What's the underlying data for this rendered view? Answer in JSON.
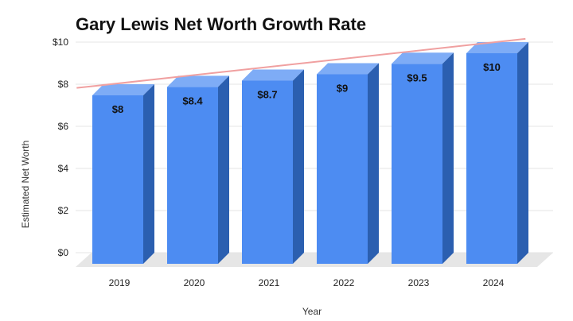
{
  "chart_data": {
    "type": "bar",
    "title": "Gary Lewis Net Worth Growth Rate",
    "xlabel": "Year",
    "ylabel": "Estimated Net Worth",
    "categories": [
      "2019",
      "2020",
      "2021",
      "2022",
      "2023",
      "2024"
    ],
    "values": [
      8,
      8.4,
      8.7,
      9,
      9.5,
      10
    ],
    "data_labels": [
      "$8",
      "$8.4",
      "$8.7",
      "$9",
      "$9.5",
      "$10"
    ],
    "ylim": [
      0,
      10
    ],
    "yticks": [
      0,
      2,
      4,
      6,
      8,
      10
    ],
    "ytick_labels": [
      "$0",
      "$2",
      "$4",
      "$6",
      "$8",
      "$10"
    ],
    "grid": true,
    "bar_style": "3d",
    "trendline": true,
    "colors": {
      "bar_front": "#4d8cf2",
      "bar_top": "#7eacf6",
      "bar_side": "#2b5fb0",
      "trendline": "#f0a0a0",
      "floor": "#e6e6e6"
    }
  }
}
